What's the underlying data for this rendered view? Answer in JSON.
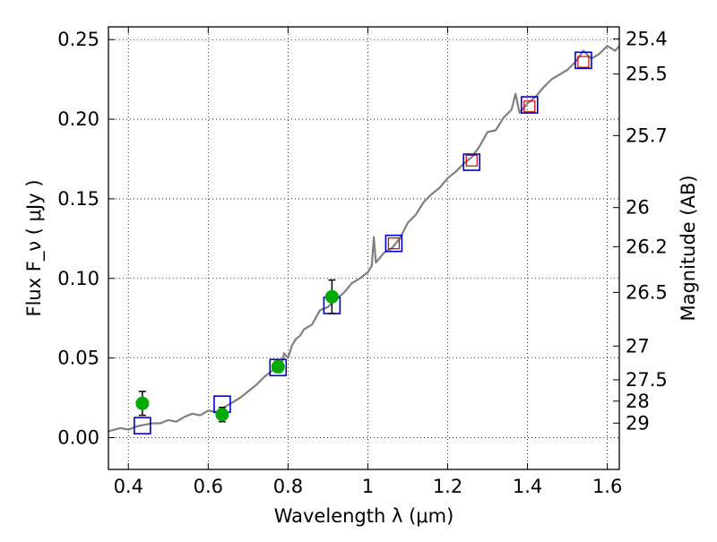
{
  "chart_data": {
    "type": "scatter",
    "title": "",
    "xlabel": "Wavelength  λ (μm)",
    "ylabel": "Flux  F_ν  ( μJy )",
    "ylabel_right": "Magnitude (AB)",
    "xlim": [
      0.35,
      1.63
    ],
    "ylim": [
      -0.02,
      0.258
    ],
    "grid": true,
    "x_ticks": [
      0.4,
      0.6,
      0.8,
      1.0,
      1.2,
      1.4,
      1.6
    ],
    "x_tick_labels": [
      "0.4",
      "0.6",
      "0.8",
      "1",
      "1.2",
      "1.4",
      "1.6"
    ],
    "y_ticks": [
      0.0,
      0.05,
      0.1,
      0.15,
      0.2,
      0.25
    ],
    "y_tick_labels": [
      "0.00",
      "0.05",
      "0.10",
      "0.15",
      "0.20",
      "0.25"
    ],
    "right_ticks": [
      {
        "label": "25.4",
        "flux": 0.2505
      },
      {
        "label": "25.5",
        "flux": 0.2284
      },
      {
        "label": "25.7",
        "flux": 0.1897
      },
      {
        "label": "26",
        "flux": 0.1445
      },
      {
        "label": "26.2",
        "flux": 0.1199
      },
      {
        "label": "26.5",
        "flux": 0.0912
      },
      {
        "label": "27",
        "flux": 0.0575
      },
      {
        "label": "27.5",
        "flux": 0.0363
      },
      {
        "label": "28",
        "flux": 0.0229
      },
      {
        "label": "29",
        "flux": 0.0091
      }
    ],
    "series": [
      {
        "kind": "spectrum",
        "color": "#808080",
        "points": [
          [
            0.35,
            0.004
          ],
          [
            0.38,
            0.006
          ],
          [
            0.4,
            0.005
          ],
          [
            0.42,
            0.007
          ],
          [
            0.44,
            0.008
          ],
          [
            0.46,
            0.009
          ],
          [
            0.48,
            0.009
          ],
          [
            0.5,
            0.011
          ],
          [
            0.52,
            0.01
          ],
          [
            0.54,
            0.013
          ],
          [
            0.56,
            0.015
          ],
          [
            0.58,
            0.014
          ],
          [
            0.6,
            0.017
          ],
          [
            0.62,
            0.016
          ],
          [
            0.64,
            0.019
          ],
          [
            0.66,
            0.022
          ],
          [
            0.68,
            0.025
          ],
          [
            0.7,
            0.029
          ],
          [
            0.72,
            0.033
          ],
          [
            0.74,
            0.038
          ],
          [
            0.76,
            0.042
          ],
          [
            0.77,
            0.046
          ],
          [
            0.78,
            0.041
          ],
          [
            0.79,
            0.053
          ],
          [
            0.8,
            0.05
          ],
          [
            0.81,
            0.058
          ],
          [
            0.82,
            0.062
          ],
          [
            0.83,
            0.064
          ],
          [
            0.84,
            0.068
          ],
          [
            0.86,
            0.071
          ],
          [
            0.88,
            0.08
          ],
          [
            0.9,
            0.082
          ],
          [
            0.92,
            0.087
          ],
          [
            0.94,
            0.091
          ],
          [
            0.96,
            0.097
          ],
          [
            0.98,
            0.1
          ],
          [
            1.0,
            0.104
          ],
          [
            1.01,
            0.108
          ],
          [
            1.015,
            0.126
          ],
          [
            1.02,
            0.11
          ],
          [
            1.04,
            0.116
          ],
          [
            1.06,
            0.119
          ],
          [
            1.08,
            0.125
          ],
          [
            1.1,
            0.135
          ],
          [
            1.12,
            0.14
          ],
          [
            1.14,
            0.148
          ],
          [
            1.16,
            0.153
          ],
          [
            1.18,
            0.157
          ],
          [
            1.2,
            0.163
          ],
          [
            1.22,
            0.167
          ],
          [
            1.24,
            0.172
          ],
          [
            1.26,
            0.176
          ],
          [
            1.28,
            0.183
          ],
          [
            1.3,
            0.192
          ],
          [
            1.32,
            0.193
          ],
          [
            1.34,
            0.201
          ],
          [
            1.36,
            0.206
          ],
          [
            1.37,
            0.216
          ],
          [
            1.38,
            0.204
          ],
          [
            1.4,
            0.21
          ],
          [
            1.42,
            0.214
          ],
          [
            1.44,
            0.22
          ],
          [
            1.46,
            0.225
          ],
          [
            1.48,
            0.228
          ],
          [
            1.5,
            0.231
          ],
          [
            1.52,
            0.236
          ],
          [
            1.54,
            0.243
          ],
          [
            1.56,
            0.238
          ],
          [
            1.58,
            0.241
          ],
          [
            1.6,
            0.246
          ],
          [
            1.62,
            0.243
          ],
          [
            1.63,
            0.246
          ]
        ]
      },
      {
        "kind": "model-squares",
        "color": "#0000cc",
        "points": [
          [
            0.435,
            0.0075
          ],
          [
            0.635,
            0.021
          ],
          [
            0.775,
            0.044
          ],
          [
            0.91,
            0.083
          ],
          [
            1.065,
            0.122
          ],
          [
            1.26,
            0.173
          ],
          [
            1.405,
            0.209
          ],
          [
            1.54,
            0.237
          ]
        ]
      },
      {
        "kind": "observed-squares",
        "color": "#cc0000",
        "points": [
          [
            1.065,
            0.122
          ],
          [
            1.26,
            0.174
          ],
          [
            1.405,
            0.208
          ],
          [
            1.54,
            0.236
          ]
        ]
      },
      {
        "kind": "photometry",
        "color": "#00aa00",
        "points": [
          {
            "x": 0.435,
            "y": 0.0215,
            "err": 0.0075
          },
          {
            "x": 0.635,
            "y": 0.0145,
            "err": 0.0045
          },
          {
            "x": 0.775,
            "y": 0.0445,
            "err": 0.0035
          },
          {
            "x": 0.91,
            "y": 0.0885,
            "err": 0.0105
          }
        ]
      }
    ]
  }
}
